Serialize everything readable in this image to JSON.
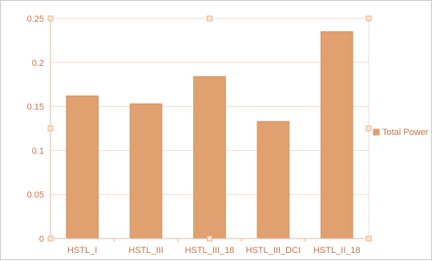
{
  "chart_data": {
    "type": "bar",
    "categories": [
      "HSTL_I",
      "HSTL_III",
      "HSTL_III_18",
      "HSTL_III_DCI",
      "HSTL_II_18"
    ],
    "series": [
      {
        "name": "Total Power",
        "values": [
          0.162,
          0.153,
          0.184,
          0.133,
          0.235
        ]
      }
    ],
    "y_ticks": [
      "0",
      "0.05",
      "0.1",
      "0.15",
      "0.2",
      "0.25"
    ],
    "ylim": [
      0,
      0.25
    ],
    "grid": true,
    "legend_position": "right",
    "bar_color": "#e0a070",
    "bar_edge_color": "#d4955f",
    "text_color": "#c8734a",
    "axis_color": "#e6b79a",
    "grid_color": "#f0ddd0",
    "handle_color": "#e7b48c"
  }
}
